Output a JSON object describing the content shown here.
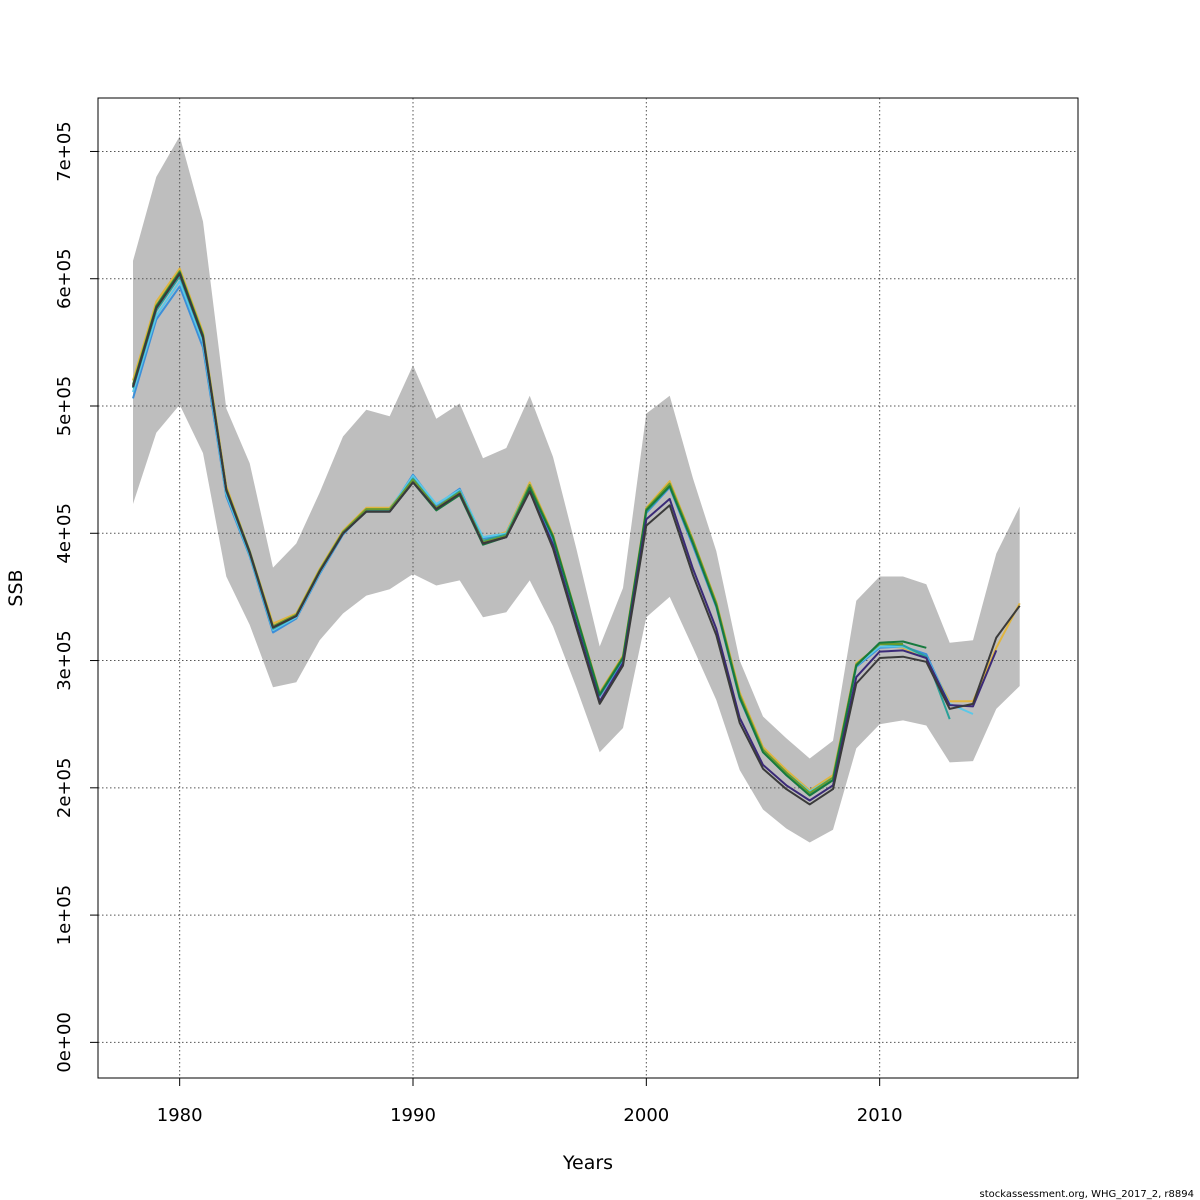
{
  "chart_data": {
    "type": "line",
    "title": "",
    "xlabel": "Years",
    "ylabel": "SSB",
    "xlim": [
      1976.5,
      2018.5
    ],
    "ylim": [
      -28000,
      742000
    ],
    "x_ticks": [
      1980,
      1990,
      2000,
      2010
    ],
    "x_tick_labels": [
      "1980",
      "1990",
      "2000",
      "2010"
    ],
    "y_ticks": [
      0,
      100000,
      200000,
      300000,
      400000,
      500000,
      600000,
      700000
    ],
    "y_tick_labels": [
      "0e+00",
      "1e+05",
      "2e+05",
      "3e+05",
      "4e+05",
      "5e+05",
      "6e+05",
      "7e+05"
    ],
    "grid": true,
    "band": {
      "x": [
        1978,
        1979,
        1980,
        1981,
        1982,
        1983,
        1984,
        1985,
        1986,
        1987,
        1988,
        1989,
        1990,
        1991,
        1992,
        1993,
        1994,
        1995,
        1996,
        1997,
        1998,
        1999,
        2000,
        2001,
        2002,
        2003,
        2004,
        2005,
        2006,
        2007,
        2008,
        2009,
        2010,
        2011,
        2012,
        2013,
        2014,
        2015,
        2016
      ],
      "upper": [
        614000,
        680000,
        712000,
        645000,
        498000,
        455000,
        373000,
        392000,
        432000,
        476000,
        497000,
        492000,
        532000,
        490000,
        502000,
        459000,
        467000,
        508000,
        460000,
        388000,
        311000,
        357000,
        494000,
        508000,
        443000,
        386000,
        300000,
        256000,
        239000,
        223000,
        237000,
        347000,
        366000,
        366000,
        360000,
        314000,
        316000,
        384000,
        421000
      ],
      "lower": [
        423000,
        479000,
        501000,
        463000,
        366000,
        328000,
        279000,
        283000,
        316000,
        337000,
        351000,
        356000,
        368000,
        359000,
        363000,
        334000,
        338000,
        363000,
        327000,
        279000,
        228000,
        247000,
        334000,
        350000,
        310000,
        269000,
        214000,
        183000,
        168000,
        157000,
        167000,
        231000,
        250000,
        253000,
        249000,
        220000,
        221000,
        262000,
        280000
      ],
      "color": "#bebebe"
    },
    "series": [
      {
        "color": "#e0b540",
        "x": [
          1978,
          1979,
          1980,
          1981,
          1982,
          1983,
          1984,
          1985,
          1986,
          1987,
          1988,
          1989,
          1990,
          1991,
          1992,
          1993,
          1994,
          1995,
          1996,
          1997,
          1998,
          1999,
          2000,
          2001,
          2002,
          2003,
          2004,
          2005,
          2006,
          2007,
          2008,
          2009,
          2010,
          2011,
          2012,
          2013,
          2014,
          2015,
          2016
        ],
        "y": [
          520000,
          582000,
          608000,
          558000,
          437000,
          386000,
          329000,
          337000,
          372000,
          402000,
          420000,
          420000,
          443000,
          421000,
          433000,
          395000,
          401000,
          440000,
          399000,
          336000,
          275000,
          304000,
          420000,
          441000,
          395000,
          346000,
          275000,
          232000,
          214000,
          198000,
          210000,
          298000,
          312000,
          310000,
          302000,
          268000,
          268000,
          310000,
          345000
        ]
      },
      {
        "color": "#3c8fd9",
        "x": [
          1978,
          1979,
          1980,
          1981,
          1982,
          1983,
          1984,
          1985,
          1986,
          1987,
          1988,
          1989,
          1990,
          1991,
          1992,
          1993,
          1994,
          1995,
          1996,
          1997,
          1998,
          1999,
          2000,
          2001,
          2002,
          2003,
          2004,
          2005,
          2006,
          2007,
          2008,
          2009,
          2010,
          2011,
          2012,
          2013
        ],
        "y": [
          506000,
          568000,
          594000,
          546000,
          429000,
          382000,
          322000,
          333000,
          368000,
          399000,
          418000,
          418000,
          446000,
          422000,
          435000,
          396000,
          399000,
          436000,
          395000,
          333000,
          272000,
          300000,
          416000,
          436000,
          390000,
          342000,
          270000,
          228000,
          211000,
          196000,
          207000,
          295000,
          310000,
          311000,
          305000,
          265000
        ]
      },
      {
        "color": "#5bc8e8",
        "x": [
          1978,
          1979,
          1980,
          1981,
          1982,
          1983,
          1984,
          1985,
          1986,
          1987,
          1988,
          1989,
          1990,
          1991,
          1992,
          1993,
          1994,
          1995,
          1996,
          1997,
          1998,
          1999,
          2000,
          2001,
          2002,
          2003,
          2004,
          2005,
          2006,
          2007,
          2008,
          2009,
          2010,
          2011,
          2012,
          2013,
          2014
        ],
        "y": [
          511000,
          571000,
          598000,
          550000,
          431000,
          383000,
          324000,
          334000,
          369000,
          400000,
          417000,
          419000,
          445000,
          423000,
          434000,
          397000,
          400000,
          438000,
          397000,
          334000,
          274000,
          302000,
          418000,
          438000,
          393000,
          344000,
          272000,
          230000,
          212000,
          197000,
          208000,
          296000,
          311000,
          311000,
          303000,
          266000,
          258000
        ]
      },
      {
        "color": "#2aa198",
        "x": [
          1978,
          1979,
          1980,
          1981,
          1982,
          1983,
          1984,
          1985,
          1986,
          1987,
          1988,
          1989,
          1990,
          1991,
          1992,
          1993,
          1994,
          1995,
          1996,
          1997,
          1998,
          1999,
          2000,
          2001,
          2002,
          2003,
          2004,
          2005,
          2006,
          2007,
          2008,
          2009,
          2010,
          2011,
          2012,
          2013
        ],
        "y": [
          514000,
          575000,
          602000,
          553000,
          433000,
          384000,
          325000,
          335000,
          370000,
          401000,
          418000,
          418000,
          443000,
          420000,
          433000,
          394000,
          399000,
          437000,
          397000,
          335000,
          273000,
          302000,
          417000,
          437000,
          393000,
          344000,
          271000,
          229000,
          210000,
          195000,
          206000,
          297000,
          313000,
          312000,
          303000,
          254000
        ]
      },
      {
        "color": "#6a9a2e",
        "x": [
          1978,
          1979,
          1980,
          1981,
          1982,
          1983,
          1984,
          1985,
          1986,
          1987,
          1988,
          1989,
          1990,
          1991,
          1992,
          1993,
          1994,
          1995,
          1996,
          1997,
          1998,
          1999,
          2000,
          2001,
          2002,
          2003,
          2004,
          2005,
          2006,
          2007,
          2008,
          2009,
          2010,
          2011
        ],
        "y": [
          517000,
          579000,
          606000,
          556000,
          435000,
          386000,
          327000,
          336000,
          371000,
          401000,
          419000,
          419000,
          442000,
          420000,
          432000,
          393000,
          398000,
          438000,
          398000,
          336000,
          274000,
          303000,
          419000,
          439000,
          394000,
          345000,
          273000,
          230000,
          212000,
          196000,
          208000,
          297000,
          313000,
          313000
        ]
      },
      {
        "color": "#177a3e",
        "x": [
          1978,
          1979,
          1980,
          1981,
          1982,
          1983,
          1984,
          1985,
          1986,
          1987,
          1988,
          1989,
          1990,
          1991,
          1992,
          1993,
          1994,
          1995,
          1996,
          1997,
          1998,
          1999,
          2000,
          2001,
          2002,
          2003,
          2004,
          2005,
          2006,
          2007,
          2008,
          2009,
          2010,
          2011,
          2012
        ],
        "y": [
          516000,
          578000,
          605000,
          555000,
          434000,
          385000,
          326000,
          335000,
          370000,
          400000,
          417000,
          417000,
          440000,
          418000,
          430000,
          391000,
          397000,
          436000,
          397000,
          335000,
          273000,
          302000,
          418000,
          437000,
          392000,
          343000,
          271000,
          228000,
          210000,
          194000,
          206000,
          296000,
          314000,
          315000,
          310000
        ]
      },
      {
        "color": "#3b2a78",
        "x": [
          1978,
          1979,
          1980,
          1981,
          1982,
          1983,
          1984,
          1985,
          1986,
          1987,
          1988,
          1989,
          1990,
          1991,
          1992,
          1993,
          1994,
          1995,
          1996,
          1997,
          1998,
          1999,
          2000,
          2001,
          2002,
          2003,
          2004,
          2005,
          2006,
          2007,
          2008,
          2009,
          2010,
          2011,
          2012,
          2013,
          2014,
          2015
        ],
        "y": [
          515000,
          577000,
          604000,
          554000,
          434000,
          385000,
          326000,
          335000,
          370000,
          400000,
          417000,
          417000,
          440000,
          419000,
          431000,
          392000,
          397000,
          433000,
          391000,
          329000,
          268000,
          298000,
          411000,
          427000,
          372000,
          325000,
          255000,
          218000,
          202000,
          190000,
          202000,
          287000,
          307000,
          308000,
          302000,
          265000,
          264000,
          308000
        ]
      },
      {
        "color": "#3a3a3a",
        "x": [
          1978,
          1979,
          1980,
          1981,
          1982,
          1983,
          1984,
          1985,
          1986,
          1987,
          1988,
          1989,
          1990,
          1991,
          1992,
          1993,
          1994,
          1995,
          1996,
          1997,
          1998,
          1999,
          2000,
          2001,
          2002,
          2003,
          2004,
          2005,
          2006,
          2007,
          2008,
          2009,
          2010,
          2011,
          2012,
          2013,
          2014,
          2015,
          2016
        ],
        "y": [
          515000,
          577000,
          604000,
          554000,
          434000,
          385000,
          326000,
          335000,
          370000,
          400000,
          417000,
          417000,
          440000,
          419000,
          431000,
          392000,
          397000,
          433000,
          388000,
          326000,
          266000,
          296000,
          406000,
          422000,
          367000,
          320000,
          251000,
          215000,
          199000,
          187000,
          199000,
          282000,
          302000,
          303000,
          299000,
          262000,
          266000,
          318000,
          343000
        ]
      }
    ],
    "credit": "stockassessment.org, WHG_2017_2, r8894"
  }
}
